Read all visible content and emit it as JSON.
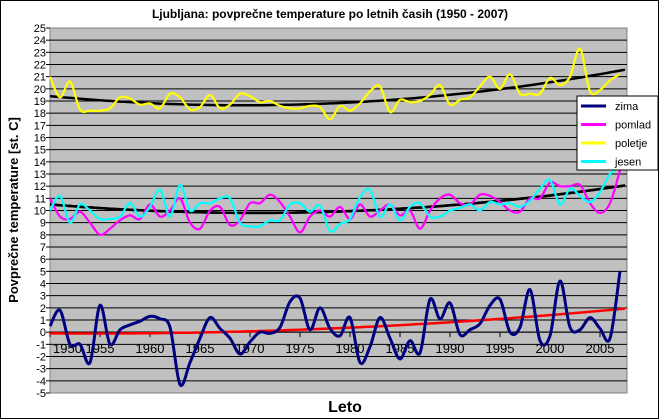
{
  "chart_data": {
    "type": "line",
    "title": "Ljubljana: povprečne temperature po letnih časih (1950 - 2007)",
    "xlabel": "Leto",
    "ylabel": "Povprečne temperature [st. C]",
    "xlim": [
      1950,
      2007
    ],
    "ylim": [
      -5,
      25
    ],
    "grid": true,
    "legend_position": "right",
    "x_ticks": [
      "1950",
      "1955",
      "1960",
      "1965",
      "1970",
      "1975",
      "1980",
      "1985",
      "1990",
      "1995",
      "2000",
      "2005"
    ],
    "y_ticks": [
      "-5",
      "-4",
      "-3",
      "-2",
      "-1",
      "0",
      "1",
      "2",
      "3",
      "4",
      "5",
      "6",
      "7",
      "8",
      "9",
      "10",
      "11",
      "12",
      "13",
      "14",
      "15",
      "16",
      "17",
      "18",
      "19",
      "20",
      "21",
      "22",
      "23",
      "24",
      "25"
    ],
    "x": [
      1950,
      1951,
      1952,
      1953,
      1954,
      1955,
      1956,
      1957,
      1958,
      1959,
      1960,
      1961,
      1962,
      1963,
      1964,
      1965,
      1966,
      1967,
      1968,
      1969,
      1970,
      1971,
      1972,
      1973,
      1974,
      1975,
      1976,
      1977,
      1978,
      1979,
      1980,
      1981,
      1982,
      1983,
      1984,
      1985,
      1986,
      1987,
      1988,
      1989,
      1990,
      1991,
      1992,
      1993,
      1994,
      1995,
      1996,
      1997,
      1998,
      1999,
      2000,
      2001,
      2002,
      2003,
      2004,
      2005,
      2006,
      2007
    ],
    "series": [
      {
        "name": "zima",
        "color": "#000080",
        "values": [
          0.5,
          1.8,
          -1,
          -1,
          -2.5,
          2.2,
          -1,
          0.2,
          0.6,
          0.9,
          1.3,
          1.1,
          0.4,
          -4.3,
          -2.5,
          -0.5,
          1.2,
          0.3,
          -0.5,
          -1.8,
          -0.8,
          0,
          -0.1,
          0.4,
          2.5,
          2.8,
          0.2,
          2.0,
          0.3,
          -0.3,
          1.2,
          -2.5,
          -1.2,
          1.2,
          -0.5,
          -2.2,
          -0.7,
          -1.7,
          2.7,
          1.1,
          2.4,
          -0.2,
          0.2,
          0.7,
          2.2,
          2.7,
          0.0,
          0.4,
          3.5,
          -0.7,
          -0.3,
          4.2,
          0.4,
          0.2,
          1.2,
          0.3,
          -0.5,
          5.0
        ],
        "trend": {
          "color": "#ff0000",
          "points": [
            [
              1950,
              -0.1
            ],
            [
              1978,
              0.3
            ],
            [
              2007,
              1.9
            ]
          ]
        }
      },
      {
        "name": "pomlad",
        "color": "#ff00ff",
        "values": [
          11,
          9.5,
          9.3,
          9.9,
          9.0,
          8.0,
          8.5,
          9.2,
          9.6,
          9.3,
          10.5,
          9.5,
          10.0,
          11.0,
          9.0,
          8.5,
          10.0,
          10.3,
          8.8,
          9.2,
          10.6,
          10.6,
          11.3,
          10.7,
          9.5,
          8.2,
          9.5,
          10.0,
          9.5,
          10.3,
          9.3,
          10.5,
          9.5,
          10.0,
          10.5,
          9.6,
          10.0,
          8.5,
          10.0,
          11.0,
          11.3,
          10.6,
          10.5,
          11.3,
          11.2,
          10.7,
          10.0,
          9.9,
          11.0,
          11.0,
          12.3,
          12.0,
          12.0,
          12.1,
          10.6,
          9.8,
          10.6,
          13.3
        ],
        "trend": {
          "color": "#000000",
          "points": [
            [
              1950,
              10.5
            ],
            [
              1970,
              9.8
            ],
            [
              2007,
              12.0
            ]
          ]
        }
      },
      {
        "name": "poletje",
        "color": "#ffff00",
        "values": [
          21,
          19.3,
          20.6,
          18.3,
          18.2,
          18.2,
          18.4,
          19.3,
          19.2,
          18.7,
          18.8,
          18.4,
          19.6,
          19.3,
          18.3,
          18.5,
          19.5,
          18.4,
          18.7,
          19.6,
          19.4,
          18.9,
          19.0,
          18.6,
          18.4,
          18.4,
          18.6,
          18.5,
          17.5,
          18.6,
          18.2,
          18.8,
          19.8,
          20.2,
          18.1,
          19.1,
          18.9,
          19.0,
          19.5,
          20.3,
          18.7,
          19.1,
          19.3,
          20.2,
          21.0,
          20.0,
          21.2,
          19.6,
          19.6,
          19.6,
          20.9,
          20.3,
          21.0,
          23.3,
          19.8,
          19.9,
          20.7,
          21.2
        ],
        "trend": {
          "color": "#000000",
          "points": [
            [
              1950,
              19.4
            ],
            [
              1978,
              18.8
            ],
            [
              2007,
              21.5
            ]
          ]
        }
      },
      {
        "name": "jesen",
        "color": "#00ffff",
        "values": [
          10,
          11.2,
          9,
          10.5,
          10,
          9.3,
          9.3,
          9.5,
          10.6,
          9.5,
          10.3,
          11.7,
          9.5,
          12.1,
          10,
          10.6,
          10.6,
          11,
          11,
          9,
          8.7,
          8.7,
          9.2,
          9.2,
          10.5,
          10.6,
          9.9,
          10.4,
          8.3,
          8.9,
          9.3,
          11.1,
          11.7,
          9.5,
          10.5,
          9.2,
          10.3,
          10.6,
          9.5,
          9.5,
          10.0,
          10.2,
          10.5,
          10.0,
          10.7,
          10.5,
          10.6,
          10.3,
          10.8,
          11.8,
          12.5,
          10.5,
          11.8,
          11.2,
          10.7,
          11.5,
          13,
          13.5
        ],
        "trend": {
          "color": "#000000",
          "points": [
            [
              1950,
              10.5
            ],
            [
              1970,
              9.8
            ],
            [
              2007,
              12.0
            ]
          ]
        }
      }
    ]
  }
}
